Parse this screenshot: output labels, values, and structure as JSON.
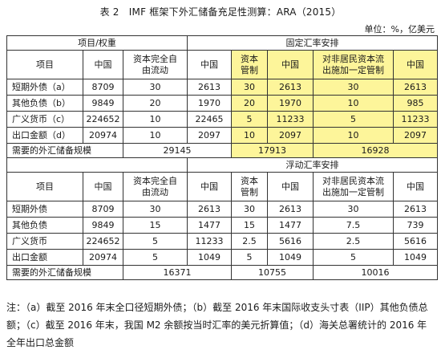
{
  "title": "表 2　IMF 框架下外汇储备充足性测算：ARA（2015）",
  "unit": "单位：%，亿美元",
  "table": {
    "group_header": "项目/权重",
    "fixed": {
      "label": "固定汇率安排",
      "headers": [
        "项目",
        "中国",
        "资本完全自由流动",
        "中国",
        "资本管制",
        "中国",
        "对非居民资本流出施加一定管制",
        "中国"
      ],
      "rows": [
        {
          "label": "短期外债（a）",
          "cells": [
            "8709",
            "30",
            "2613",
            "30",
            "2613",
            "30",
            "2613"
          ]
        },
        {
          "label": "其他负债（b）",
          "cells": [
            "9849",
            "20",
            "1970",
            "20",
            "1970",
            "10",
            "985"
          ]
        },
        {
          "label": "广义货币（c）",
          "cells": [
            "224652",
            "10",
            "22465",
            "5",
            "11233",
            "5",
            "11233"
          ]
        },
        {
          "label": "出口金额（d）",
          "cells": [
            "20974",
            "10",
            "2097",
            "10",
            "2097",
            "10",
            "2097"
          ]
        }
      ],
      "summary_label": "需要的外汇储备规模",
      "summary": [
        "29145",
        "17913",
        "16928"
      ]
    },
    "floating": {
      "label": "浮动汇率安排",
      "headers": [
        "项目",
        "中国",
        "资本完全自由流动",
        "中国",
        "资本管制",
        "中国",
        "对非居民资本流出施加一定管制",
        "中国"
      ],
      "rows": [
        {
          "label": "短期外债",
          "cells": [
            "8709",
            "30",
            "2613",
            "30",
            "2613",
            "30",
            "2613"
          ]
        },
        {
          "label": "其他负债",
          "cells": [
            "9849",
            "15",
            "1477",
            "15",
            "1477",
            "7.5",
            "739"
          ]
        },
        {
          "label": "广义货币",
          "cells": [
            "224652",
            "5",
            "11233",
            "2.5",
            "5616",
            "2.5",
            "5616"
          ]
        },
        {
          "label": "出口金额",
          "cells": [
            "20974",
            "5",
            "1049",
            "5",
            "1049",
            "5",
            "1049"
          ]
        }
      ],
      "summary_label": "需要的外汇储备规模",
      "summary": [
        "16371",
        "10755",
        "10016"
      ]
    }
  },
  "note": "注：（a）截至 2016 年末全口径短期外债；（b）截至 2016 年末国际收支头寸表（IIP）其他负债总额；（c）截至 2016 年末，我国 M2 余额按当时汇率的美元折算值；（d）海关总署统计的 2016 年全年出口总金额"
}
